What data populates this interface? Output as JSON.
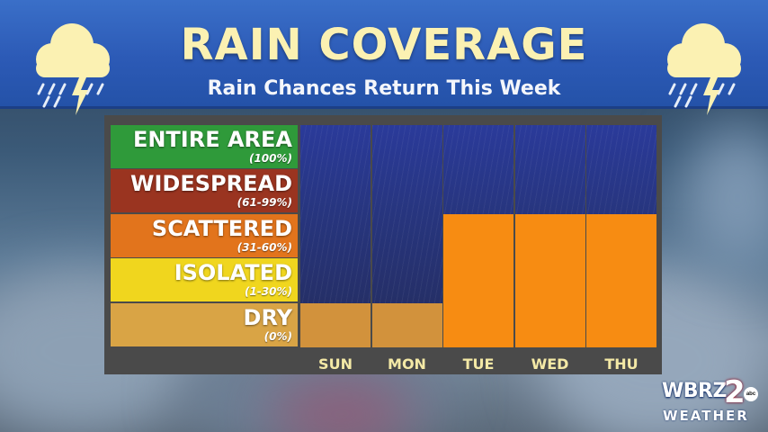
{
  "header": {
    "title": "RAIN COVERAGE",
    "subtitle": "Rain Chances Return This Week"
  },
  "legend": [
    {
      "label": "ENTIRE AREA",
      "range": "(100%)",
      "color": "#2f9a3a"
    },
    {
      "label": "WIDESPREAD",
      "range": "(61-99%)",
      "color": "#9a3420"
    },
    {
      "label": "SCATTERED",
      "range": "(31-60%)",
      "color": "#e2741c"
    },
    {
      "label": "ISOLATED",
      "range": "(1-30%)",
      "color": "#f0d61e"
    },
    {
      "label": "DRY",
      "range": "(0%)",
      "color": "#d9a445"
    }
  ],
  "chart_data": {
    "type": "bar",
    "categories": [
      "SUN",
      "MON",
      "TUE",
      "WED",
      "THU"
    ],
    "values": [
      1,
      1,
      3,
      3,
      3
    ],
    "value_meaning": "coverage level index: 1=DRY, 2=ISOLATED, 3=SCATTERED, 4=WIDESPREAD, 5=ENTIRE AREA",
    "levels": [
      "DRY",
      "ISOLATED",
      "SCATTERED",
      "WIDESPREAD",
      "ENTIRE AREA"
    ],
    "ylim": [
      0,
      5
    ],
    "bar_colors": [
      "#d2923c",
      "#d2923c",
      "#f78c12",
      "#f78c12",
      "#f78c12"
    ],
    "title": "RAIN COVERAGE",
    "subtitle": "Rain Chances Return This Week"
  },
  "logo": {
    "station": "WBRZ",
    "channel": "2",
    "network": "abc",
    "tagline": "WEATHER"
  },
  "icons": [
    "rain-cloud-lightning-icon",
    "rain-cloud-lightning-icon"
  ]
}
